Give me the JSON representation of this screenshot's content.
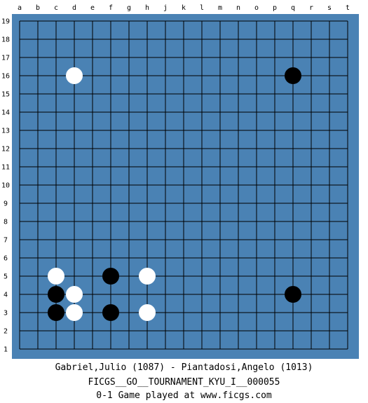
{
  "board": {
    "size": 19,
    "board_color": "#4a82b4",
    "line_color": "#000000",
    "columns": [
      "a",
      "b",
      "c",
      "d",
      "e",
      "f",
      "g",
      "h",
      "j",
      "k",
      "l",
      "m",
      "n",
      "o",
      "p",
      "q",
      "r",
      "s",
      "t"
    ],
    "rows": [
      "19",
      "18",
      "17",
      "16",
      "15",
      "14",
      "13",
      "12",
      "11",
      "10",
      "9",
      "8",
      "7",
      "6",
      "5",
      "4",
      "3",
      "2",
      "1"
    ],
    "stones": [
      {
        "color": "white",
        "point": "d16"
      },
      {
        "color": "black",
        "point": "q16"
      },
      {
        "color": "white",
        "point": "c5"
      },
      {
        "color": "black",
        "point": "f5"
      },
      {
        "color": "white",
        "point": "h5"
      },
      {
        "color": "black",
        "point": "c4"
      },
      {
        "color": "white",
        "point": "d4"
      },
      {
        "color": "black",
        "point": "q4"
      },
      {
        "color": "black",
        "point": "c3"
      },
      {
        "color": "white",
        "point": "d3"
      },
      {
        "color": "black",
        "point": "f3"
      },
      {
        "color": "white",
        "point": "h3"
      }
    ]
  },
  "game_info": {
    "players": "Gabriel,Julio (1087) - Piantadosi,Angelo (1013)",
    "tournament": "FICGS__GO__TOURNAMENT_KYU_I__000055",
    "result_line": "0-1   Game played at www.ficgs.com"
  }
}
